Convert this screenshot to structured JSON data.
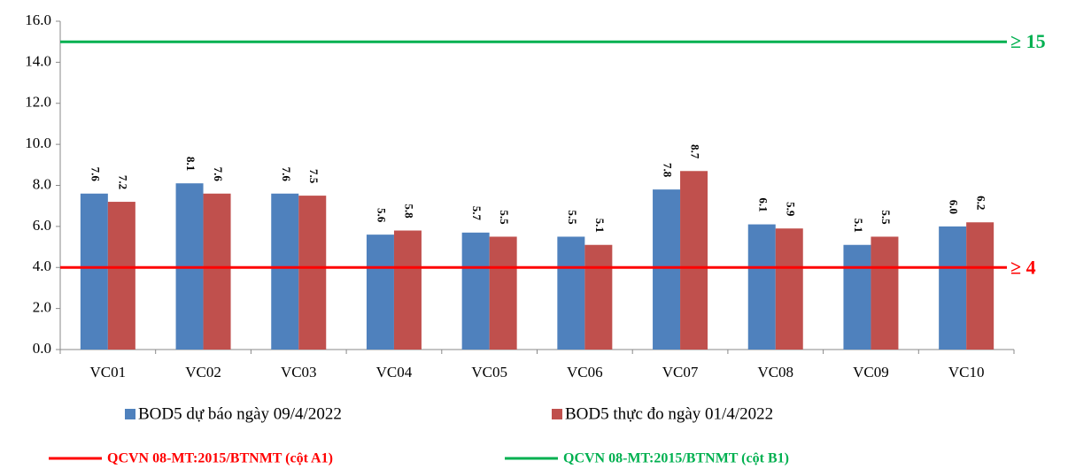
{
  "chart_data": {
    "type": "bar",
    "categories": [
      "VC01",
      "VC02",
      "VC03",
      "VC04",
      "VC05",
      "VC06",
      "VC07",
      "VC08",
      "VC09",
      "VC10"
    ],
    "series": [
      {
        "name": "BOD5 dự báo ngày 09/4/2022",
        "color": "#4f81bd",
        "values": [
          7.6,
          8.1,
          7.6,
          5.6,
          5.7,
          5.5,
          7.8,
          6.1,
          5.1,
          6.0
        ],
        "value_labels": [
          "7.6",
          "8.1",
          "7.6",
          "5.6",
          "5.7",
          "5.5",
          "7.8",
          "6.1",
          "5.1",
          "6.0"
        ]
      },
      {
        "name": "BOD5 thực đo ngày 01/4/2022",
        "color": "#c0504d",
        "values": [
          7.2,
          7.6,
          7.5,
          5.8,
          5.5,
          5.1,
          8.7,
          5.9,
          5.5,
          6.2
        ],
        "value_labels": [
          "7.2",
          "7.6",
          "7.5",
          "5.8",
          "5.5",
          "5.1",
          "8.7",
          "5.9",
          "5.5",
          "6.2"
        ]
      }
    ],
    "reference_lines": [
      {
        "name": "QCVN 08-MT:2015/BTNMT (cột A1)",
        "value": 4,
        "label": "≥ 4",
        "color": "#ff0000"
      },
      {
        "name": "QCVN 08-MT:2015/BTNMT (cột B1)",
        "value": 15,
        "label": "≥ 15",
        "color": "#00b050"
      }
    ],
    "ylim": [
      0,
      16
    ],
    "yticks": [
      {
        "value": 0,
        "label": "0.0"
      },
      {
        "value": 2,
        "label": "2.0"
      },
      {
        "value": 4,
        "label": "4.0"
      },
      {
        "value": 6,
        "label": "6.0"
      },
      {
        "value": 8,
        "label": "8.0"
      },
      {
        "value": 10,
        "label": "10.0"
      },
      {
        "value": 12,
        "label": "12.0"
      },
      {
        "value": 14,
        "label": "14.0"
      },
      {
        "value": 16,
        "label": "16.0"
      }
    ],
    "grid": false
  }
}
